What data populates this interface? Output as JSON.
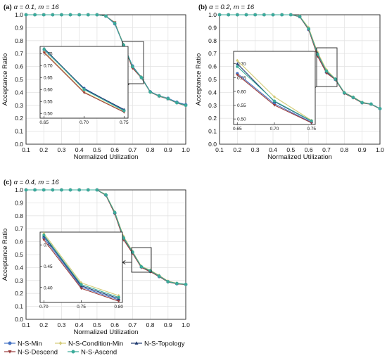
{
  "chart_data": [
    {
      "type": "line",
      "panel_label": "(a)",
      "title_param": "α = 0.1, m = 16",
      "xlabel": "Normalized Utilization",
      "ylabel": "Acceptance Ratio",
      "xlim": [
        0.1,
        1.0
      ],
      "ylim": [
        0.0,
        1.0
      ],
      "xticks": [
        "0.1",
        "0.2",
        "0.3",
        "0.4",
        "0.5",
        "0.6",
        "0.7",
        "0.8",
        "0.9",
        "1.0"
      ],
      "yticks": [
        "0.0",
        "0.1",
        "0.2",
        "0.3",
        "0.4",
        "0.5",
        "0.6",
        "0.7",
        "0.8",
        "0.9",
        "1.0"
      ],
      "grid": true,
      "x": [
        0.1,
        0.15,
        0.2,
        0.25,
        0.3,
        0.35,
        0.4,
        0.45,
        0.5,
        0.55,
        0.6,
        0.65,
        0.7,
        0.75,
        0.8,
        0.85,
        0.9,
        0.95,
        1.0
      ],
      "series": [
        {
          "name": "N-S-Min",
          "values": [
            1,
            1,
            1,
            1,
            1,
            1,
            1,
            1,
            1,
            0.99,
            0.93,
            0.765,
            0.605,
            0.515,
            0.405,
            0.375,
            0.355,
            0.325,
            0.305
          ]
        },
        {
          "name": "N-S-Condition-Min",
          "values": [
            1,
            1,
            1,
            1,
            1,
            1,
            1,
            1,
            1,
            0.99,
            0.94,
            0.77,
            0.592,
            0.52,
            0.4,
            0.375,
            0.352,
            0.32,
            0.3
          ]
        },
        {
          "name": "N-S-Topology",
          "values": [
            1,
            1,
            1,
            1,
            1,
            1,
            1,
            1,
            1,
            0.99,
            0.935,
            0.768,
            0.598,
            0.518,
            0.405,
            0.372,
            0.35,
            0.322,
            0.302
          ]
        },
        {
          "name": "N-S-Descend",
          "values": [
            1,
            1,
            1,
            1,
            1,
            1,
            1,
            1,
            1,
            0.99,
            0.94,
            0.762,
            0.588,
            0.512,
            0.402,
            0.37,
            0.35,
            0.318,
            0.298
          ]
        },
        {
          "name": "N-S-Ascend",
          "values": [
            1,
            1,
            1,
            1,
            1,
            1,
            1,
            1,
            1,
            0.99,
            0.935,
            0.766,
            0.6,
            0.515,
            0.403,
            0.373,
            0.352,
            0.32,
            0.3
          ]
        }
      ],
      "inset": {
        "xlim": [
          0.645,
          0.755
        ],
        "ylim": [
          0.48,
          0.78
        ],
        "xticks": [
          "0.65",
          "0.70",
          "0.75"
        ],
        "yticks": [
          "0.50",
          "0.55",
          "0.60",
          "0.65",
          "0.70",
          "0.75"
        ],
        "x": [
          0.65,
          0.7,
          0.75
        ],
        "series": [
          {
            "name": "N-S-Min",
            "values": [
              0.766,
              0.605,
              0.513
            ]
          },
          {
            "name": "N-S-Condition-Min",
            "values": [
              0.758,
              0.59,
              0.507
            ]
          },
          {
            "name": "N-S-Topology",
            "values": [
              0.772,
              0.603,
              0.516
            ]
          },
          {
            "name": "N-S-Descend",
            "values": [
              0.754,
              0.587,
              0.505
            ]
          },
          {
            "name": "N-S-Ascend",
            "values": [
              0.769,
              0.6,
              0.511
            ]
          }
        ]
      }
    },
    {
      "type": "line",
      "panel_label": "(b)",
      "title_param": "α = 0.2, m = 16",
      "xlabel": "Normalized Utilization",
      "ylabel": "Acceptance Ratio",
      "xlim": [
        0.1,
        1.0
      ],
      "ylim": [
        0.0,
        1.0
      ],
      "xticks": [
        "0.1",
        "0.2",
        "0.3",
        "0.4",
        "0.5",
        "0.6",
        "0.7",
        "0.8",
        "0.9",
        "1.0"
      ],
      "yticks": [
        "0.0",
        "0.1",
        "0.2",
        "0.3",
        "0.4",
        "0.5",
        "0.6",
        "0.7",
        "0.8",
        "0.9",
        "1.0"
      ],
      "grid": true,
      "x": [
        0.1,
        0.15,
        0.2,
        0.25,
        0.3,
        0.35,
        0.4,
        0.45,
        0.5,
        0.55,
        0.6,
        0.65,
        0.7,
        0.75,
        0.8,
        0.85,
        0.9,
        0.95,
        1.0
      ],
      "series": [
        {
          "name": "N-S-Min",
          "values": [
            1,
            1,
            1,
            1,
            1,
            1,
            1,
            1,
            1,
            0.985,
            0.885,
            0.69,
            0.555,
            0.5,
            0.395,
            0.36,
            0.32,
            0.31,
            0.275
          ]
        },
        {
          "name": "N-S-Condition-Min",
          "values": [
            1,
            1,
            1,
            1,
            1,
            1,
            1,
            1,
            1,
            0.99,
            0.9,
            0.71,
            0.575,
            0.505,
            0.4,
            0.365,
            0.325,
            0.31,
            0.275
          ]
        },
        {
          "name": "N-S-Topology",
          "values": [
            1,
            1,
            1,
            1,
            1,
            1,
            1,
            1,
            1,
            0.985,
            0.89,
            0.7,
            0.56,
            0.502,
            0.398,
            0.362,
            0.322,
            0.31,
            0.275
          ]
        },
        {
          "name": "N-S-Descend",
          "values": [
            1,
            1,
            1,
            1,
            1,
            1,
            1,
            1,
            1,
            0.985,
            0.885,
            0.68,
            0.55,
            0.498,
            0.392,
            0.358,
            0.318,
            0.308,
            0.273
          ]
        },
        {
          "name": "N-S-Ascend",
          "values": [
            1,
            1,
            1,
            1,
            1,
            1,
            1,
            1,
            1,
            0.987,
            0.892,
            0.695,
            0.565,
            0.503,
            0.397,
            0.361,
            0.321,
            0.31,
            0.275
          ]
        }
      ],
      "inset": {
        "xlim": [
          0.645,
          0.755
        ],
        "ylim": [
          0.48,
          0.745
        ],
        "xticks": [
          "0.65",
          "0.70",
          "0.75"
        ],
        "yticks": [
          "0.50",
          "0.55",
          "0.60",
          "0.65",
          "0.70"
        ],
        "x": [
          0.65,
          0.7,
          0.75
        ],
        "series": [
          {
            "name": "N-S-Min",
            "values": [
              0.665,
              0.555,
              0.488
            ]
          },
          {
            "name": "N-S-Condition-Min",
            "values": [
              0.712,
              0.58,
              0.495
            ]
          },
          {
            "name": "N-S-Topology",
            "values": [
              0.7,
              0.563,
              0.492
            ]
          },
          {
            "name": "N-S-Descend",
            "values": [
              0.66,
              0.55,
              0.486
            ]
          },
          {
            "name": "N-S-Ascend",
            "values": [
              0.69,
              0.565,
              0.493
            ]
          }
        ]
      }
    },
    {
      "type": "line",
      "panel_label": "(c)",
      "title_param": "α = 0.4, m = 16",
      "xlabel": "Normalized Utilization",
      "ylabel": "Acceptance Ratio",
      "xlim": [
        0.1,
        1.0
      ],
      "ylim": [
        0.0,
        1.0
      ],
      "xticks": [
        "0.1",
        "0.2",
        "0.3",
        "0.4",
        "0.5",
        "0.6",
        "0.7",
        "0.8",
        "0.9",
        "1.0"
      ],
      "yticks": [
        "0.0",
        "0.1",
        "0.2",
        "0.3",
        "0.4",
        "0.5",
        "0.6",
        "0.7",
        "0.8",
        "0.9",
        "1.0"
      ],
      "grid": true,
      "x": [
        0.1,
        0.15,
        0.2,
        0.25,
        0.3,
        0.35,
        0.4,
        0.45,
        0.5,
        0.55,
        0.6,
        0.65,
        0.7,
        0.75,
        0.8,
        0.85,
        0.9,
        0.95,
        1.0
      ],
      "series": [
        {
          "name": "N-S-Min",
          "values": [
            1,
            1,
            1,
            1,
            1,
            1,
            1,
            1,
            1,
            0.96,
            0.82,
            0.62,
            0.515,
            0.405,
            0.37,
            0.33,
            0.29,
            0.275,
            0.27
          ]
        },
        {
          "name": "N-S-Condition-Min",
          "values": [
            1,
            1,
            1,
            1,
            1,
            1,
            1,
            1,
            1,
            0.965,
            0.83,
            0.64,
            0.525,
            0.41,
            0.38,
            0.34,
            0.295,
            0.28,
            0.27
          ]
        },
        {
          "name": "N-S-Topology",
          "values": [
            1,
            1,
            1,
            1,
            1,
            1,
            1,
            1,
            1,
            0.96,
            0.825,
            0.63,
            0.52,
            0.405,
            0.375,
            0.335,
            0.292,
            0.277,
            0.27
          ]
        },
        {
          "name": "N-S-Descend",
          "values": [
            1,
            1,
            1,
            1,
            1,
            1,
            1,
            1,
            1,
            0.958,
            0.815,
            0.615,
            0.51,
            0.4,
            0.368,
            0.33,
            0.288,
            0.274,
            0.268
          ]
        },
        {
          "name": "N-S-Ascend",
          "values": [
            1,
            1,
            1,
            1,
            1,
            1,
            1,
            1,
            1,
            0.962,
            0.826,
            0.628,
            0.52,
            0.406,
            0.375,
            0.334,
            0.291,
            0.277,
            0.27
          ]
        }
      ],
      "inset": {
        "xlim": [
          0.695,
          0.805
        ],
        "ylim": [
          0.365,
          0.53
        ],
        "xticks": [
          "0.70",
          "0.75",
          "0.80"
        ],
        "yticks": [
          "0.40",
          "0.45",
          "0.50"
        ],
        "x": [
          0.7,
          0.75,
          0.8
        ],
        "series": [
          {
            "name": "N-S-Min",
            "values": [
              0.517,
              0.401,
              0.371
            ]
          },
          {
            "name": "N-S-Condition-Min",
            "values": [
              0.527,
              0.411,
              0.381
            ]
          },
          {
            "name": "N-S-Topology",
            "values": [
              0.521,
              0.404,
              0.374
            ]
          },
          {
            "name": "N-S-Descend",
            "values": [
              0.512,
              0.398,
              0.368
            ]
          },
          {
            "name": "N-S-Ascend",
            "values": [
              0.523,
              0.407,
              0.377
            ]
          }
        ]
      }
    }
  ],
  "legend": {
    "placement": "bottom-left",
    "items": [
      {
        "name": "N-S-Min",
        "color": "#4472c4",
        "marker": "circle"
      },
      {
        "name": "N-S-Condition-Min",
        "color": "#d4cc78",
        "marker": "diamond"
      },
      {
        "name": "N-S-Topology",
        "color": "#1f3a70",
        "marker": "triangle-up"
      },
      {
        "name": "N-S-Descend",
        "color": "#9a3b3b",
        "marker": "triangle-down"
      },
      {
        "name": "N-S-Ascend",
        "color": "#3bab9a",
        "marker": "circle"
      }
    ]
  }
}
